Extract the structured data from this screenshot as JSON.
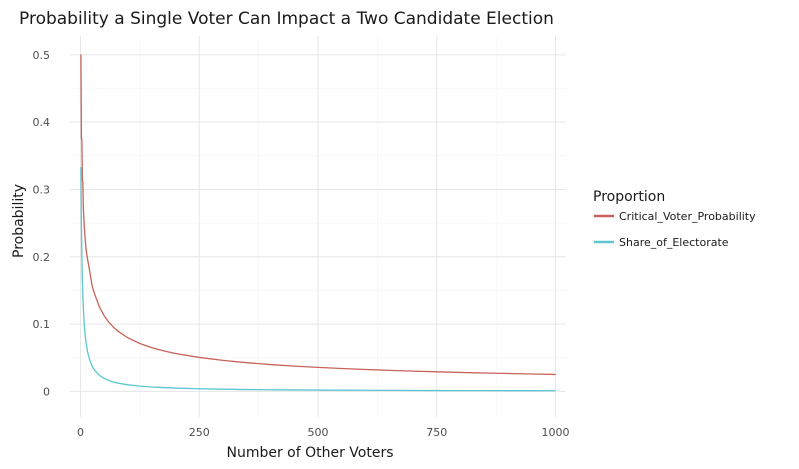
{
  "chart_data": {
    "type": "line",
    "title": "Probability a Single Voter Can Impact a Two Candidate Election",
    "xlabel": "Number of Other Voters",
    "ylabel": "Probability",
    "xlim": [
      -22,
      1022
    ],
    "ylim": [
      -0.038,
      0.528
    ],
    "x_ticks": [
      0,
      250,
      500,
      750,
      1000
    ],
    "x_tick_labels": [
      "0",
      "250",
      "500",
      "750",
      "1000"
    ],
    "y_ticks": [
      0,
      0.1,
      0.2,
      0.3,
      0.4,
      0.5
    ],
    "y_tick_labels": [
      "0",
      "0.1",
      "0.2",
      "0.3",
      "0.4",
      "0.5"
    ],
    "grid": true,
    "legend": {
      "title": "Proportion",
      "placement": "right"
    },
    "series": [
      {
        "name": "Critical_Voter_Probability",
        "color": "#c8625a",
        "x": [
          0,
          1,
          2,
          3,
          4,
          5,
          6,
          8,
          10,
          12,
          15,
          20,
          25,
          30,
          40,
          50,
          60,
          70,
          80,
          100,
          125,
          150,
          175,
          200,
          250,
          300,
          350,
          400,
          450,
          500,
          550,
          600,
          650,
          700,
          750,
          800,
          850,
          900,
          950,
          1000
        ],
        "values": [
          0.5,
          0.5,
          0.375,
          0.375,
          0.3125,
          0.3125,
          0.2734,
          0.2461,
          0.2256,
          0.2095,
          0.1964,
          0.1762,
          0.1555,
          0.1444,
          0.1254,
          0.1123,
          0.1026,
          0.095,
          0.0889,
          0.0796,
          0.0712,
          0.0651,
          0.0603,
          0.0564,
          0.0505,
          0.0461,
          0.0427,
          0.0399,
          0.0376,
          0.0357,
          0.034,
          0.0326,
          0.0313,
          0.0302,
          0.0291,
          0.0282,
          0.0274,
          0.0266,
          0.0259,
          0.0252
        ]
      },
      {
        "name": "Share_of_Electorate",
        "color": "#5bc6d0",
        "x": [
          1,
          2,
          3,
          4,
          5,
          6,
          8,
          10,
          12,
          15,
          20,
          25,
          30,
          40,
          50,
          60,
          70,
          80,
          100,
          125,
          150,
          175,
          200,
          250,
          300,
          350,
          400,
          450,
          500,
          550,
          600,
          650,
          700,
          750,
          800,
          850,
          900,
          950,
          1000
        ],
        "values": [
          0.3333,
          0.25,
          0.2,
          0.1667,
          0.1429,
          0.125,
          0.1,
          0.0833,
          0.0714,
          0.0588,
          0.0455,
          0.037,
          0.0313,
          0.0238,
          0.0192,
          0.0161,
          0.0139,
          0.0122,
          0.0098,
          0.0079,
          0.0066,
          0.0057,
          0.005,
          0.004,
          0.0033,
          0.0028,
          0.0025,
          0.0022,
          0.002,
          0.0018,
          0.0017,
          0.0015,
          0.0014,
          0.0013,
          0.0012,
          0.0012,
          0.0011,
          0.0011,
          0.001
        ]
      }
    ]
  }
}
